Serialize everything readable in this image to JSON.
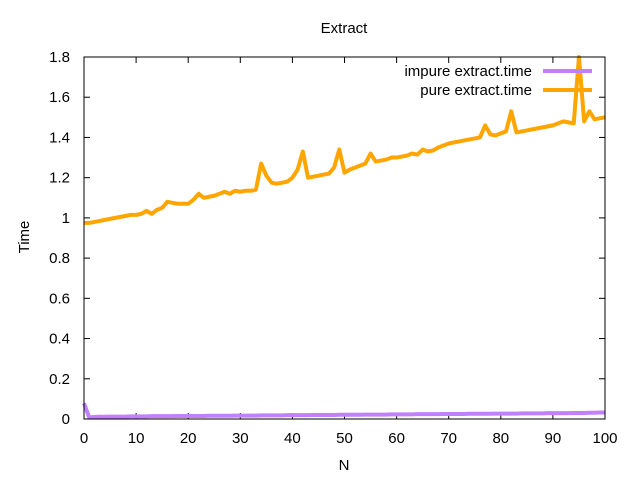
{
  "chart_data": {
    "type": "line",
    "title": "Extract",
    "xlabel": "N",
    "ylabel": "Time",
    "xlim": [
      0,
      100
    ],
    "ylim": [
      0,
      1.8
    ],
    "x_ticks": [
      0,
      10,
      20,
      30,
      40,
      50,
      60,
      70,
      80,
      90,
      100
    ],
    "x_tick_labels": [
      "0",
      "10",
      "20",
      "30",
      "40",
      "50",
      "60",
      "70",
      "80",
      "90",
      "100"
    ],
    "y_ticks": [
      0,
      0.2,
      0.4,
      0.6,
      0.8,
      1.0,
      1.2,
      1.4,
      1.6,
      1.8
    ],
    "y_tick_labels": [
      "0",
      "0.2",
      "0.4",
      "0.6",
      "0.8",
      "1",
      "1.2",
      "1.4",
      "1.6",
      "1.8"
    ],
    "grid": false,
    "legend_position": "top-right",
    "series": [
      {
        "name": "impure extract.time",
        "color": "#c080ff",
        "x": [
          0,
          1,
          2,
          3,
          4,
          5,
          6,
          7,
          8,
          9,
          10,
          11,
          12,
          13,
          14,
          15,
          16,
          17,
          18,
          19,
          20,
          21,
          22,
          23,
          24,
          25,
          26,
          27,
          28,
          29,
          30,
          31,
          32,
          33,
          34,
          35,
          36,
          37,
          38,
          39,
          40,
          41,
          42,
          43,
          44,
          45,
          46,
          47,
          48,
          49,
          50,
          51,
          52,
          53,
          54,
          55,
          56,
          57,
          58,
          59,
          60,
          61,
          62,
          63,
          64,
          65,
          66,
          67,
          68,
          69,
          70,
          71,
          72,
          73,
          74,
          75,
          76,
          77,
          78,
          79,
          80,
          81,
          82,
          83,
          84,
          85,
          86,
          87,
          88,
          89,
          90,
          91,
          92,
          93,
          94,
          95,
          96,
          97,
          98,
          99,
          100
        ],
        "y": [
          0.078,
          0.008,
          0.01,
          0.011,
          0.011,
          0.012,
          0.012,
          0.012,
          0.012,
          0.013,
          0.013,
          0.013,
          0.013,
          0.014,
          0.014,
          0.014,
          0.014,
          0.014,
          0.015,
          0.015,
          0.015,
          0.015,
          0.015,
          0.015,
          0.016,
          0.016,
          0.016,
          0.016,
          0.016,
          0.017,
          0.017,
          0.017,
          0.017,
          0.017,
          0.018,
          0.018,
          0.018,
          0.018,
          0.018,
          0.019,
          0.019,
          0.019,
          0.019,
          0.019,
          0.02,
          0.02,
          0.02,
          0.02,
          0.02,
          0.021,
          0.021,
          0.021,
          0.021,
          0.021,
          0.022,
          0.022,
          0.022,
          0.022,
          0.022,
          0.023,
          0.023,
          0.023,
          0.023,
          0.023,
          0.024,
          0.024,
          0.024,
          0.024,
          0.024,
          0.025,
          0.025,
          0.025,
          0.025,
          0.025,
          0.026,
          0.026,
          0.026,
          0.026,
          0.026,
          0.027,
          0.027,
          0.027,
          0.027,
          0.027,
          0.028,
          0.028,
          0.028,
          0.028,
          0.028,
          0.029,
          0.029,
          0.029,
          0.029,
          0.029,
          0.03,
          0.03,
          0.03,
          0.031,
          0.031,
          0.032,
          0.032
        ]
      },
      {
        "name": "pure extract.time",
        "color": "#ffa500",
        "x": [
          0,
          1,
          2,
          3,
          4,
          5,
          6,
          7,
          8,
          9,
          10,
          11,
          12,
          13,
          14,
          15,
          16,
          17,
          18,
          19,
          20,
          21,
          22,
          23,
          24,
          25,
          26,
          27,
          28,
          29,
          30,
          31,
          32,
          33,
          34,
          35,
          36,
          37,
          38,
          39,
          40,
          41,
          42,
          43,
          44,
          45,
          46,
          47,
          48,
          49,
          50,
          51,
          52,
          53,
          54,
          55,
          56,
          57,
          58,
          59,
          60,
          61,
          62,
          63,
          64,
          65,
          66,
          67,
          68,
          69,
          70,
          71,
          72,
          73,
          74,
          75,
          76,
          77,
          78,
          79,
          80,
          81,
          82,
          83,
          84,
          85,
          86,
          87,
          88,
          89,
          90,
          91,
          92,
          93,
          94,
          95,
          96,
          97,
          98,
          99,
          100
        ],
        "y": [
          0.975,
          0.975,
          0.98,
          0.985,
          0.99,
          0.995,
          1.0,
          1.005,
          1.01,
          1.015,
          1.015,
          1.02,
          1.035,
          1.02,
          1.04,
          1.05,
          1.08,
          1.075,
          1.07,
          1.07,
          1.07,
          1.09,
          1.12,
          1.1,
          1.105,
          1.11,
          1.12,
          1.13,
          1.12,
          1.135,
          1.13,
          1.135,
          1.135,
          1.14,
          1.27,
          1.21,
          1.175,
          1.17,
          1.175,
          1.18,
          1.2,
          1.24,
          1.33,
          1.2,
          1.205,
          1.21,
          1.215,
          1.22,
          1.25,
          1.34,
          1.225,
          1.24,
          1.25,
          1.26,
          1.27,
          1.32,
          1.28,
          1.285,
          1.29,
          1.3,
          1.3,
          1.305,
          1.31,
          1.32,
          1.315,
          1.34,
          1.33,
          1.335,
          1.35,
          1.36,
          1.37,
          1.375,
          1.38,
          1.385,
          1.39,
          1.395,
          1.4,
          1.46,
          1.415,
          1.41,
          1.42,
          1.43,
          1.53,
          1.425,
          1.43,
          1.435,
          1.44,
          1.445,
          1.45,
          1.455,
          1.46,
          1.47,
          1.48,
          1.475,
          1.47,
          1.8,
          1.48,
          1.53,
          1.49,
          1.495,
          1.5
        ]
      }
    ]
  }
}
